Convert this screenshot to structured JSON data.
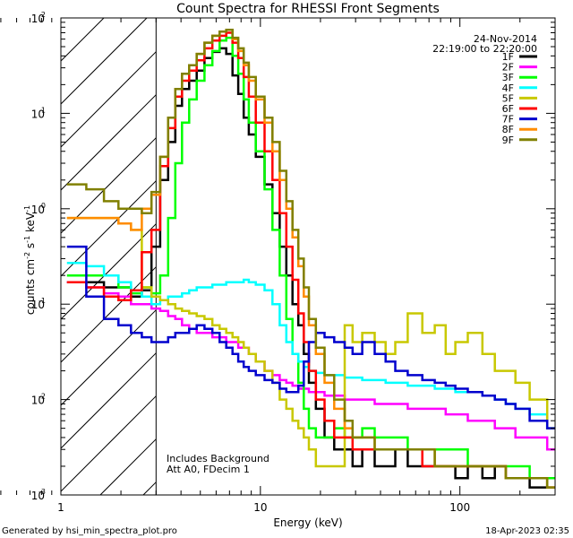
{
  "chart_data": {
    "type": "line",
    "title": "Count Spectra for RHESSI Front Segments",
    "xlabel": "Energy (keV)",
    "ylabel_parts": [
      "counts cm",
      "-2",
      " s",
      "-1",
      " keV",
      "-1"
    ],
    "x_scale": "log",
    "y_scale": "log",
    "xlim": [
      1,
      300
    ],
    "ylim": [
      0.001,
      100
    ],
    "x_ticks": [
      {
        "v": 1,
        "label": "1"
      },
      {
        "v": 10,
        "label": "10"
      },
      {
        "v": 100,
        "label": "100"
      }
    ],
    "y_ticks": [
      {
        "v": 0.001,
        "base": "10",
        "exp": "-3"
      },
      {
        "v": 0.01,
        "base": "10",
        "exp": "-2"
      },
      {
        "v": 0.1,
        "base": "10",
        "exp": "-1"
      },
      {
        "v": 1,
        "base": "10",
        "exp": "0"
      },
      {
        "v": 10,
        "base": "10",
        "exp": "1"
      },
      {
        "v": 100,
        "base": "10",
        "exp": "2"
      }
    ],
    "excluded_region": [
      1,
      3
    ],
    "date": "24-Nov-2014",
    "time_range": "22:19:00 to 22:20:00",
    "notes": [
      "Includes Background",
      "Att A0, FDecim 1"
    ],
    "footer_left": "Generated by hsi_min_spectra_plot.pro",
    "footer_right": "18-Apr-2023 02:35",
    "energy_bins": [
      1.2,
      1.5,
      1.8,
      2.1,
      2.4,
      2.7,
      3.0,
      3.3,
      3.6,
      3.9,
      4.2,
      4.6,
      5.0,
      5.5,
      6.0,
      6.5,
      7.0,
      7.5,
      8.0,
      8.5,
      9.0,
      10,
      11,
      12,
      13,
      14,
      15,
      16,
      17,
      18,
      20,
      22,
      25,
      28,
      30,
      35,
      40,
      45,
      50,
      60,
      70,
      80,
      90,
      100,
      120,
      140,
      160,
      180,
      200,
      250,
      300
    ],
    "series": [
      {
        "name": "1F",
        "color": "#000000",
        "values": [
          0.17,
          0.17,
          0.15,
          0.15,
          0.12,
          0.14,
          0.4,
          2.0,
          5,
          12,
          18,
          22,
          28,
          38,
          44,
          48,
          42,
          25,
          16,
          9,
          6,
          3.5,
          1.8,
          0.9,
          0.4,
          0.2,
          0.1,
          0.06,
          0.03,
          0.015,
          0.008,
          0.004,
          0.003,
          0.003,
          0.002,
          0.003,
          0.002,
          0.002,
          0.003,
          0.002,
          0.002,
          0.002,
          0.002,
          0.0015,
          0.002,
          0.0015,
          0.002,
          0.0015,
          0.0015,
          0.0012,
          0.0015
        ]
      },
      {
        "name": "2F",
        "color": "#ff00ff",
        "values": [
          0.17,
          0.15,
          0.13,
          0.12,
          0.1,
          0.1,
          0.09,
          0.085,
          0.075,
          0.07,
          0.06,
          0.055,
          0.05,
          0.05,
          0.045,
          0.045,
          0.04,
          0.04,
          0.035,
          0.035,
          0.03,
          0.025,
          0.02,
          0.018,
          0.016,
          0.015,
          0.014,
          0.013,
          0.013,
          0.012,
          0.012,
          0.011,
          0.011,
          0.01,
          0.01,
          0.01,
          0.009,
          0.009,
          0.009,
          0.008,
          0.008,
          0.008,
          0.007,
          0.007,
          0.006,
          0.006,
          0.005,
          0.005,
          0.004,
          0.004,
          0.003
        ]
      },
      {
        "name": "3F",
        "color": "#00ff00",
        "values": [
          0.2,
          0.2,
          0.2,
          0.15,
          0.13,
          0.15,
          0.13,
          0.2,
          0.8,
          3,
          8,
          14,
          22,
          32,
          45,
          58,
          62,
          40,
          26,
          14,
          8,
          4,
          1.6,
          0.6,
          0.2,
          0.07,
          0.03,
          0.015,
          0.008,
          0.005,
          0.004,
          0.004,
          0.005,
          0.004,
          0.004,
          0.005,
          0.004,
          0.004,
          0.004,
          0.003,
          0.003,
          0.003,
          0.003,
          0.003,
          0.002,
          0.002,
          0.002,
          0.002,
          0.002,
          0.0015,
          0.0015
        ]
      },
      {
        "name": "4F",
        "color": "#00ffff",
        "values": [
          0.27,
          0.25,
          0.2,
          0.17,
          0.14,
          0.12,
          0.1,
          0.11,
          0.12,
          0.12,
          0.13,
          0.14,
          0.15,
          0.15,
          0.16,
          0.16,
          0.17,
          0.17,
          0.17,
          0.18,
          0.17,
          0.16,
          0.14,
          0.1,
          0.06,
          0.04,
          0.03,
          0.025,
          0.022,
          0.02,
          0.019,
          0.018,
          0.018,
          0.017,
          0.017,
          0.016,
          0.016,
          0.015,
          0.015,
          0.014,
          0.014,
          0.013,
          0.013,
          0.012,
          0.012,
          0.011,
          0.01,
          0.009,
          0.008,
          0.007,
          0.005
        ]
      },
      {
        "name": "5F",
        "color": "#c8c800",
        "values": [
          0.8,
          0.8,
          0.8,
          0.7,
          0.6,
          0.15,
          0.12,
          0.11,
          0.1,
          0.09,
          0.085,
          0.08,
          0.075,
          0.07,
          0.06,
          0.055,
          0.05,
          0.045,
          0.04,
          0.035,
          0.03,
          0.025,
          0.02,
          0.015,
          0.01,
          0.008,
          0.006,
          0.005,
          0.004,
          0.003,
          0.002,
          0.002,
          0.002,
          0.06,
          0.04,
          0.05,
          0.04,
          0.03,
          0.04,
          0.08,
          0.05,
          0.06,
          0.03,
          0.04,
          0.05,
          0.03,
          0.02,
          0.02,
          0.015,
          0.01,
          0.005
        ]
      },
      {
        "name": "6F",
        "color": "#ff0000",
        "values": [
          0.17,
          0.15,
          0.12,
          0.11,
          0.14,
          0.35,
          0.6,
          2.8,
          7,
          15,
          22,
          28,
          36,
          48,
          58,
          65,
          70,
          55,
          38,
          24,
          15,
          8,
          4,
          2,
          0.9,
          0.4,
          0.18,
          0.08,
          0.04,
          0.02,
          0.01,
          0.006,
          0.004,
          0.004,
          0.003,
          0.003,
          0.003,
          0.003,
          0.003,
          0.003,
          0.002,
          0.002,
          0.002,
          0.002,
          0.002,
          0.002,
          0.002,
          0.0015,
          0.0015,
          0.0015,
          0.0012
        ]
      },
      {
        "name": "7F",
        "color": "#0000cd",
        "values": [
          0.4,
          0.12,
          0.07,
          0.06,
          0.05,
          0.045,
          0.04,
          0.04,
          0.045,
          0.05,
          0.05,
          0.055,
          0.06,
          0.055,
          0.05,
          0.04,
          0.035,
          0.03,
          0.025,
          0.022,
          0.02,
          0.018,
          0.016,
          0.015,
          0.013,
          0.012,
          0.012,
          0.014,
          0.025,
          0.04,
          0.05,
          0.045,
          0.04,
          0.035,
          0.03,
          0.04,
          0.03,
          0.025,
          0.02,
          0.018,
          0.016,
          0.015,
          0.014,
          0.013,
          0.012,
          0.011,
          0.01,
          0.009,
          0.008,
          0.006,
          0.005
        ]
      },
      {
        "name": "8F",
        "color": "#ff8c00",
        "values": [
          0.8,
          0.8,
          0.8,
          0.7,
          0.6,
          1.0,
          1.4,
          3.5,
          9,
          18,
          26,
          32,
          42,
          55,
          65,
          72,
          75,
          60,
          45,
          32,
          22,
          14,
          8,
          4,
          2,
          1,
          0.5,
          0.25,
          0.12,
          0.06,
          0.03,
          0.015,
          0.008,
          0.005,
          0.004,
          0.004,
          0.003,
          0.003,
          0.003,
          0.003,
          0.003,
          0.002,
          0.002,
          0.002,
          0.002,
          0.002,
          0.002,
          0.0015,
          0.0015,
          0.0015,
          0.0012
        ]
      },
      {
        "name": "9F",
        "color": "#808000",
        "values": [
          1.8,
          1.6,
          1.2,
          1.0,
          1.0,
          0.9,
          1.5,
          3.5,
          9,
          18,
          26,
          32,
          42,
          55,
          65,
          72,
          75,
          62,
          48,
          34,
          24,
          15,
          9,
          5,
          2.5,
          1.2,
          0.6,
          0.3,
          0.15,
          0.07,
          0.035,
          0.018,
          0.01,
          0.006,
          0.004,
          0.004,
          0.003,
          0.003,
          0.003,
          0.003,
          0.003,
          0.002,
          0.002,
          0.002,
          0.002,
          0.002,
          0.002,
          0.0015,
          0.0015,
          0.0015,
          0.0012
        ]
      }
    ]
  }
}
